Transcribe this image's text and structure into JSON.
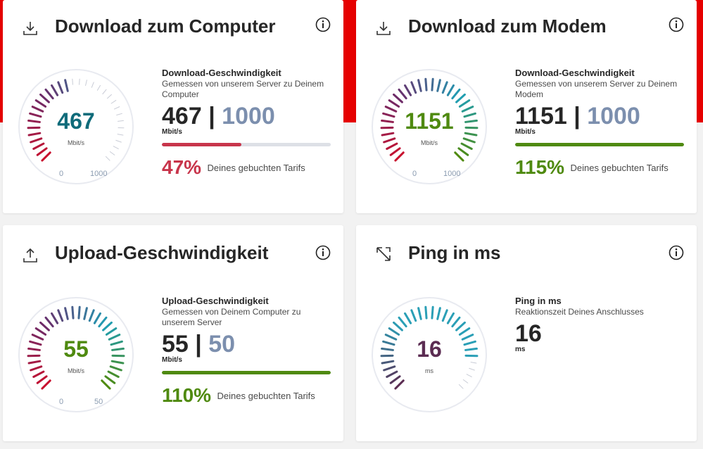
{
  "colors": {
    "red": "#e60000",
    "teal": "#0f6b7a",
    "green": "#4f8a10",
    "purple": "#5b2c52",
    "bar_red": "#c8354b",
    "target_blue": "#7c8fae"
  },
  "cards": {
    "download_computer": {
      "icon": "download-icon",
      "title": "Download zum Computer",
      "gauge": {
        "value": "467",
        "unit": "Mbit/s",
        "min": "0",
        "max": "1000",
        "level": 0.467
      },
      "label": "Download-Geschwindigkeit",
      "sub": "Gemessen von unserem Server zu Deinem Computer",
      "measured": "467",
      "separator": "|",
      "target": "1000",
      "unit": "Mbit/s",
      "progress": 47,
      "percent": "47%",
      "percent_text": "Deines gebuchten Tarifs"
    },
    "download_modem": {
      "icon": "download-icon",
      "title": "Download zum Modem",
      "gauge": {
        "value": "1151",
        "unit": "Mbit/s",
        "min": "0",
        "max": "1000",
        "level": 1.0
      },
      "label": "Download-Geschwindigkeit",
      "sub": "Gemessen von unserem Server zu Deinem Modem",
      "measured": "1151",
      "separator": "|",
      "target": "1000",
      "unit": "Mbit/s",
      "progress": 100,
      "percent": "115%",
      "percent_text": "Deines gebuchten Tarifs"
    },
    "upload": {
      "icon": "upload-icon",
      "title": "Upload-Geschwindigkeit",
      "gauge": {
        "value": "55",
        "unit": "Mbit/s",
        "min": "0",
        "max": "50",
        "level": 1.0
      },
      "label": "Upload-Geschwindigkeit",
      "sub": "Gemessen von Deinem Computer zu unserem Server",
      "measured": "55",
      "separator": "|",
      "target": "50",
      "unit": "Mbit/s",
      "progress": 100,
      "percent": "110%",
      "percent_text": "Deines gebuchten Tarifs"
    },
    "ping": {
      "icon": "ping-arrows-icon",
      "title": "Ping in ms",
      "gauge": {
        "value": "16",
        "unit": "ms",
        "level": 0.85
      },
      "label": "Ping in ms",
      "sub": "Reaktionszeit Deines Anschlusses",
      "measured": "16",
      "unit": "ms"
    }
  }
}
